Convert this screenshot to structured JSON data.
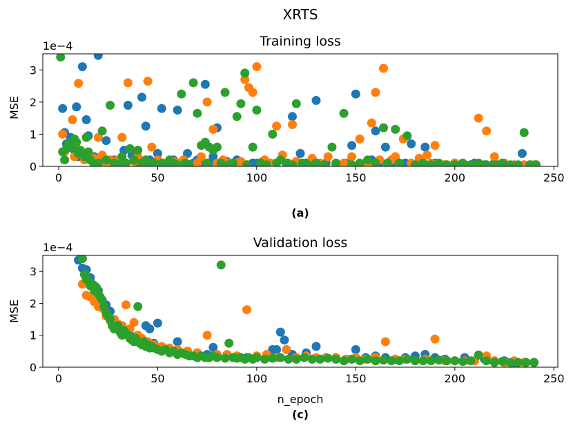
{
  "figure": {
    "suptitle": "XRTS",
    "xlabel": "n_epoch"
  },
  "colors": {
    "blue": "#1f77b4",
    "orange": "#ff7f0e",
    "green": "#2ca02c"
  },
  "chart_data": [
    {
      "type": "scatter",
      "title": "Training loss",
      "caption": "(a)",
      "ylabel": "MSE",
      "offset_label": "1e−4",
      "xlim": [
        -8,
        252
      ],
      "ylim": [
        0,
        3.5
      ],
      "xticks": [
        "0",
        "50",
        "100",
        "150",
        "200",
        "250"
      ],
      "xtick_values": [
        0,
        50,
        100,
        150,
        200,
        250
      ],
      "yticks": [
        "0",
        "1",
        "2",
        "3"
      ],
      "ytick_values": [
        0,
        1,
        2,
        3
      ],
      "series": [
        {
          "name": "blue",
          "color": "blue",
          "x": [
            2,
            3,
            4,
            6,
            8,
            9,
            10,
            12,
            13,
            14,
            15,
            16,
            18,
            20,
            22,
            24,
            26,
            28,
            30,
            33,
            35,
            37,
            40,
            42,
            44,
            46,
            48,
            50,
            52,
            55,
            58,
            60,
            62,
            65,
            68,
            70,
            72,
            74,
            76,
            78,
            80,
            82,
            85,
            88,
            90,
            92,
            95,
            98,
            100,
            103,
            105,
            108,
            110,
            115,
            118,
            120,
            122,
            125,
            128,
            130,
            135,
            140,
            145,
            148,
            150,
            155,
            158,
            160,
            162,
            165,
            168,
            170,
            175,
            178,
            182,
            185,
            190,
            195,
            200,
            205,
            210,
            215,
            220,
            225,
            230,
            234,
            238,
            241
          ],
          "y": [
            1.8,
            1.05,
            0.7,
            0.9,
            0.5,
            1.85,
            0.3,
            3.1,
            0.4,
            1.45,
            0.95,
            0.2,
            0.3,
            3.45,
            0.25,
            0.8,
            0.1,
            0.2,
            0.15,
            0.5,
            1.9,
            0.35,
            0.1,
            2.15,
            1.25,
            0.2,
            0.1,
            0.4,
            1.8,
            0.1,
            0.2,
            1.75,
            0.1,
            0.4,
            0.1,
            0.2,
            0.1,
            2.55,
            0.1,
            0.3,
            1.2,
            0.1,
            0.15,
            0.1,
            0.2,
            0.1,
            0.05,
            0.1,
            0.1,
            0.15,
            0.1,
            0.05,
            0.1,
            0.05,
            1.55,
            0.1,
            0.4,
            0.1,
            0.05,
            2.05,
            0.1,
            0.05,
            0.1,
            0.65,
            2.25,
            0.1,
            0.2,
            1.1,
            0.1,
            0.6,
            0.1,
            0.2,
            0.1,
            0.7,
            0.1,
            0.6,
            0.1,
            0.05,
            0.1,
            0.05,
            0.1,
            0.05,
            0.1,
            0.05,
            0.05,
            0.4,
            0.05,
            0.05
          ]
        },
        {
          "name": "orange",
          "color": "orange",
          "x": [
            2,
            3,
            5,
            7,
            8,
            10,
            11,
            13,
            15,
            17,
            18,
            20,
            22,
            24,
            26,
            28,
            30,
            32,
            35,
            38,
            40,
            43,
            45,
            47,
            50,
            53,
            56,
            58,
            60,
            63,
            66,
            70,
            72,
            75,
            78,
            80,
            83,
            86,
            90,
            92,
            94,
            96,
            98,
            100,
            104,
            107,
            110,
            113,
            116,
            118,
            120,
            124,
            128,
            132,
            136,
            140,
            144,
            148,
            152,
            156,
            158,
            160,
            162,
            164,
            166,
            168,
            170,
            174,
            178,
            182,
            186,
            188,
            190,
            195,
            200,
            205,
            208,
            212,
            216,
            220,
            225,
            230,
            235,
            240
          ],
          "y": [
            1.0,
            0.45,
            0.6,
            1.45,
            0.3,
            2.58,
            0.5,
            0.2,
            0.4,
            0.15,
            0.25,
            0.9,
            0.35,
            0.1,
            0.2,
            0.05,
            0.2,
            0.9,
            2.6,
            0.15,
            0.3,
            0.1,
            2.65,
            0.6,
            0.2,
            0.1,
            0.05,
            0.15,
            0.1,
            0.2,
            0.05,
            0.1,
            0.3,
            2.0,
            1.15,
            0.1,
            0.2,
            0.1,
            0.1,
            0.15,
            2.7,
            2.45,
            2.3,
            3.1,
            0.2,
            0.1,
            1.25,
            0.35,
            0.1,
            1.3,
            0.15,
            0.05,
            0.25,
            0.1,
            0.3,
            0.05,
            0.1,
            0.3,
            0.85,
            0.1,
            1.35,
            2.3,
            0.2,
            3.05,
            0.1,
            0.2,
            0.3,
            0.85,
            0.1,
            0.25,
            0.35,
            0.1,
            0.65,
            0.05,
            0.1,
            0.05,
            0.05,
            1.5,
            1.1,
            0.3,
            0.1,
            0.05,
            0.05,
            0.05
          ]
        },
        {
          "name": "green",
          "color": "green",
          "x": [
            1,
            2,
            3,
            4,
            5,
            6,
            7,
            8,
            9,
            10,
            11,
            12,
            13,
            14,
            15,
            16,
            18,
            20,
            22,
            24,
            26,
            28,
            30,
            32,
            34,
            36,
            38,
            40,
            42,
            44,
            46,
            48,
            50,
            52,
            54,
            56,
            58,
            60,
            62,
            64,
            66,
            68,
            70,
            72,
            74,
            75,
            76,
            78,
            80,
            82,
            84,
            86,
            88,
            90,
            92,
            94,
            95,
            98,
            100,
            102,
            105,
            108,
            110,
            112,
            115,
            118,
            120,
            123,
            126,
            130,
            134,
            138,
            140,
            144,
            148,
            152,
            156,
            160,
            164,
            166,
            170,
            172,
            176,
            180,
            184,
            188,
            192,
            196,
            200,
            204,
            208,
            212,
            216,
            220,
            224,
            228,
            232,
            235,
            238,
            241
          ],
          "y": [
            3.4,
            0.45,
            0.2,
            0.55,
            0.7,
            0.6,
            0.6,
            0.85,
            0.75,
            0.4,
            0.5,
            0.35,
            0.3,
            0.9,
            0.45,
            0.2,
            0.05,
            0.1,
            1.1,
            0.2,
            1.9,
            0.1,
            0.05,
            0.3,
            0.1,
            0.55,
            0.2,
            0.5,
            0.1,
            0.2,
            0.05,
            0.1,
            0.05,
            0.1,
            0.05,
            0.2,
            0.1,
            0.05,
            2.25,
            0.1,
            0.05,
            2.6,
            1.65,
            0.65,
            0.75,
            0.1,
            0.6,
            0.5,
            0.6,
            0.1,
            2.3,
            0.05,
            0.1,
            1.55,
            1.95,
            2.9,
            0.05,
            0.6,
            1.75,
            0.1,
            0.05,
            1.0,
            0.1,
            0.2,
            0.1,
            0.05,
            1.95,
            0.1,
            0.05,
            0.1,
            0.05,
            0.6,
            0.1,
            1.65,
            0.05,
            0.1,
            0.2,
            0.1,
            1.2,
            0.1,
            1.15,
            0.1,
            0.95,
            0.05,
            0.1,
            0.05,
            0.1,
            0.05,
            0.05,
            0.1,
            0.05,
            0.1,
            0.05,
            0.05,
            0.1,
            0.05,
            0.05,
            1.05,
            0.05,
            0.05
          ]
        }
      ]
    },
    {
      "type": "scatter",
      "title": "Validation loss",
      "caption": "(c)",
      "ylabel": "MSE",
      "offset_label": "1e−4",
      "xlim": [
        -8,
        252
      ],
      "ylim": [
        0,
        3.5
      ],
      "xticks": [
        "0",
        "50",
        "100",
        "150",
        "200",
        "250"
      ],
      "xtick_values": [
        0,
        50,
        100,
        150,
        200,
        250
      ],
      "yticks": [
        "0",
        "1",
        "2",
        "3"
      ],
      "ytick_values": [
        0,
        1,
        2,
        3
      ],
      "series": [
        {
          "name": "blue",
          "color": "blue",
          "x": [
            10,
            12,
            14,
            16,
            18,
            20,
            22,
            24,
            26,
            28,
            30,
            32,
            34,
            36,
            38,
            40,
            42,
            44,
            46,
            48,
            50,
            52,
            55,
            60,
            65,
            70,
            75,
            78,
            80,
            85,
            90,
            95,
            100,
            105,
            108,
            110,
            112,
            114,
            118,
            120,
            125,
            130,
            135,
            140,
            145,
            150,
            155,
            160,
            165,
            170,
            175,
            180,
            185,
            190,
            195,
            200,
            205,
            210,
            215,
            220,
            225,
            230,
            235,
            240
          ],
          "y": [
            3.35,
            3.1,
            3.05,
            2.8,
            2.55,
            2.4,
            2.1,
            1.95,
            1.75,
            1.5,
            1.3,
            1.2,
            1.1,
            1.0,
            0.95,
            0.9,
            0.85,
            1.3,
            1.2,
            0.75,
            1.38,
            0.6,
            0.55,
            0.8,
            0.5,
            0.45,
            0.4,
            0.62,
            0.38,
            0.35,
            0.35,
            0.3,
            0.35,
            0.3,
            0.55,
            0.55,
            1.1,
            0.85,
            0.4,
            0.3,
            0.45,
            0.65,
            0.3,
            0.3,
            0.25,
            0.55,
            0.3,
            0.35,
            0.3,
            0.25,
            0.3,
            0.35,
            0.4,
            0.3,
            0.25,
            0.2,
            0.3,
            0.2,
            0.25,
            0.2,
            0.2,
            0.15,
            0.15,
            0.15
          ]
        },
        {
          "name": "orange",
          "color": "orange",
          "x": [
            12,
            14,
            16,
            18,
            20,
            22,
            24,
            26,
            28,
            30,
            32,
            34,
            36,
            38,
            40,
            42,
            45,
            48,
            52,
            56,
            60,
            65,
            70,
            75,
            80,
            85,
            90,
            95,
            100,
            105,
            110,
            115,
            120,
            125,
            130,
            135,
            140,
            145,
            150,
            155,
            160,
            165,
            170,
            175,
            180,
            185,
            190,
            195,
            200,
            205,
            210,
            216,
            220,
            225,
            230,
            235,
            240
          ],
          "y": [
            2.6,
            2.25,
            2.2,
            2.05,
            1.9,
            1.85,
            1.6,
            1.45,
            1.5,
            1.35,
            1.3,
            1.95,
            1.2,
            1.4,
            1.0,
            0.9,
            0.8,
            0.7,
            0.65,
            0.6,
            0.55,
            0.5,
            0.45,
            1.0,
            0.4,
            0.4,
            0.35,
            1.8,
            0.35,
            0.4,
            0.3,
            0.55,
            0.3,
            0.35,
            0.3,
            0.3,
            0.3,
            0.25,
            0.3,
            0.25,
            0.3,
            0.8,
            0.25,
            0.25,
            0.2,
            0.25,
            0.88,
            0.2,
            0.2,
            0.2,
            0.2,
            0.35,
            0.2,
            0.15,
            0.2,
            0.15,
            0.15
          ]
        },
        {
          "name": "green",
          "color": "green",
          "x": [
            12,
            13,
            14,
            15,
            16,
            17,
            18,
            19,
            20,
            21,
            22,
            23,
            24,
            25,
            26,
            27,
            28,
            29,
            30,
            31,
            32,
            33,
            34,
            35,
            36,
            37,
            38,
            39,
            40,
            41,
            42,
            43,
            44,
            45,
            46,
            47,
            48,
            50,
            52,
            54,
            56,
            58,
            60,
            62,
            64,
            66,
            68,
            70,
            72,
            74,
            76,
            78,
            80,
            82,
            84,
            86,
            88,
            90,
            92,
            94,
            96,
            98,
            100,
            104,
            108,
            112,
            116,
            120,
            124,
            128,
            132,
            136,
            140,
            144,
            148,
            152,
            156,
            160,
            164,
            168,
            172,
            176,
            180,
            184,
            188,
            192,
            196,
            200,
            204,
            208,
            212,
            216,
            220,
            224,
            228,
            232,
            236,
            240
          ],
          "y": [
            3.4,
            2.9,
            2.75,
            2.7,
            2.55,
            2.6,
            2.4,
            2.5,
            2.3,
            2.2,
            2.1,
            1.9,
            1.7,
            1.6,
            1.5,
            1.3,
            1.2,
            1.25,
            1.3,
            1.1,
            1.0,
            1.15,
            1.05,
            1.0,
            0.9,
            0.85,
            0.8,
            0.9,
            1.9,
            0.75,
            0.7,
            0.8,
            0.65,
            0.7,
            0.6,
            0.65,
            0.6,
            0.55,
            0.5,
            0.55,
            0.45,
            0.5,
            0.4,
            0.45,
            0.4,
            0.35,
            0.35,
            0.3,
            0.35,
            0.3,
            0.3,
            0.35,
            0.3,
            3.2,
            0.28,
            0.75,
            0.3,
            0.28,
            0.3,
            0.25,
            0.3,
            0.25,
            0.3,
            0.25,
            0.28,
            0.3,
            0.25,
            0.25,
            0.3,
            0.25,
            0.25,
            0.28,
            0.25,
            0.2,
            0.25,
            0.2,
            0.25,
            0.2,
            0.22,
            0.2,
            0.2,
            0.25,
            0.2,
            0.2,
            0.2,
            0.22,
            0.2,
            0.2,
            0.18,
            0.2,
            0.38,
            0.2,
            0.15,
            0.18,
            0.15,
            0.15,
            0.15,
            0.15
          ]
        }
      ]
    }
  ]
}
